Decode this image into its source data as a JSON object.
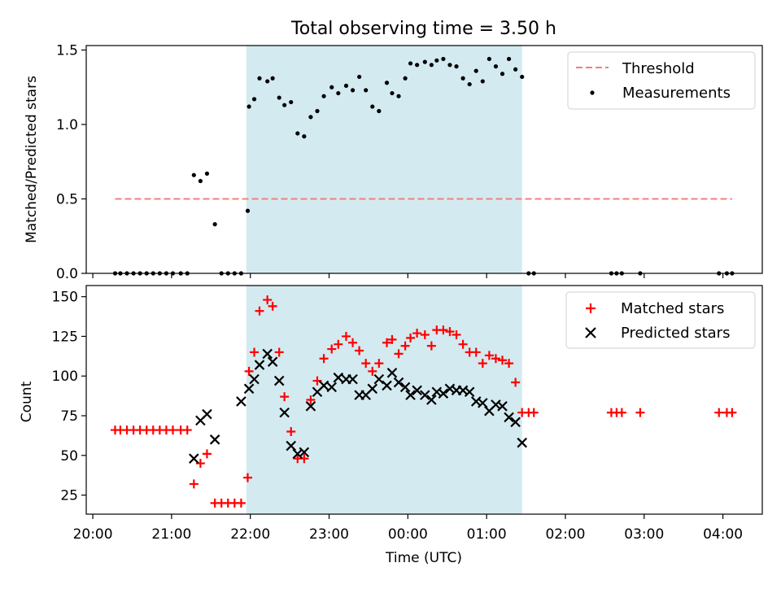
{
  "figure": {
    "suptitle": "Total observing time = 3.50 h"
  },
  "chart_data": [
    {
      "type": "scatter",
      "panel": "top",
      "ylabel": "Matched/Predicted stars",
      "ylim": [
        0,
        1.53
      ],
      "yticks": [
        0.0,
        0.5,
        1.0,
        1.5
      ],
      "ytick_labels": [
        "0.0",
        "0.5",
        "1.0",
        "1.5"
      ],
      "xlim": [
        "19:55",
        "04:30"
      ],
      "shaded_interval": {
        "start": "21:57",
        "end": "01:27",
        "color": "#d3eaf0"
      },
      "series": [
        {
          "name": "Threshold",
          "kind": "dashed-line",
          "color": "#f08080",
          "x": [
            "20:17",
            "04:07"
          ],
          "y": [
            0.5,
            0.5
          ]
        },
        {
          "name": "Measurements",
          "kind": "dot",
          "color": "#000000",
          "points": [
            [
              "20:17",
              0
            ],
            [
              "20:21",
              0
            ],
            [
              "20:26",
              0
            ],
            [
              "20:31",
              0
            ],
            [
              "20:36",
              0
            ],
            [
              "20:41",
              0
            ],
            [
              "20:46",
              0
            ],
            [
              "20:51",
              0
            ],
            [
              "20:56",
              0
            ],
            [
              "21:01",
              0
            ],
            [
              "21:07",
              0
            ],
            [
              "21:12",
              0
            ],
            [
              "21:17",
              0.66
            ],
            [
              "21:22",
              0.62
            ],
            [
              "21:27",
              0.67
            ],
            [
              "21:33",
              0.33
            ],
            [
              "21:38",
              0
            ],
            [
              "21:43",
              0
            ],
            [
              "21:48",
              0
            ],
            [
              "21:53",
              0
            ],
            [
              "21:58",
              0.42
            ],
            [
              "21:59",
              1.12
            ],
            [
              "22:03",
              1.17
            ],
            [
              "22:07",
              1.31
            ],
            [
              "22:13",
              1.29
            ],
            [
              "22:17",
              1.31
            ],
            [
              "22:22",
              1.18
            ],
            [
              "22:26",
              1.13
            ],
            [
              "22:31",
              1.15
            ],
            [
              "22:36",
              0.94
            ],
            [
              "22:41",
              0.92
            ],
            [
              "22:46",
              1.05
            ],
            [
              "22:51",
              1.09
            ],
            [
              "22:56",
              1.19
            ],
            [
              "23:02",
              1.25
            ],
            [
              "23:07",
              1.21
            ],
            [
              "23:13",
              1.26
            ],
            [
              "23:18",
              1.23
            ],
            [
              "23:23",
              1.32
            ],
            [
              "23:28",
              1.23
            ],
            [
              "23:33",
              1.12
            ],
            [
              "23:38",
              1.09
            ],
            [
              "23:44",
              1.28
            ],
            [
              "23:48",
              1.21
            ],
            [
              "23:53",
              1.19
            ],
            [
              "23:58",
              1.31
            ],
            [
              "00:02",
              1.41
            ],
            [
              "00:07",
              1.4
            ],
            [
              "00:13",
              1.42
            ],
            [
              "00:18",
              1.4
            ],
            [
              "00:22",
              1.43
            ],
            [
              "00:27",
              1.44
            ],
            [
              "00:32",
              1.4
            ],
            [
              "00:37",
              1.39
            ],
            [
              "00:42",
              1.31
            ],
            [
              "00:47",
              1.27
            ],
            [
              "00:52",
              1.36
            ],
            [
              "00:57",
              1.29
            ],
            [
              "01:02",
              1.44
            ],
            [
              "01:07",
              1.39
            ],
            [
              "01:12",
              1.34
            ],
            [
              "01:17",
              1.44
            ],
            [
              "01:22",
              1.37
            ],
            [
              "01:27",
              1.32
            ],
            [
              "01:32",
              0
            ],
            [
              "01:36",
              0
            ],
            [
              "02:35",
              0
            ],
            [
              "02:39",
              0
            ],
            [
              "02:43",
              0
            ],
            [
              "02:57",
              0
            ],
            [
              "03:57",
              0
            ],
            [
              "04:03",
              0
            ],
            [
              "04:07",
              0
            ]
          ]
        }
      ],
      "legend": {
        "position": "top-right",
        "entries": [
          "Threshold",
          "Measurements"
        ]
      }
    },
    {
      "type": "scatter",
      "panel": "bottom",
      "xlabel": "Time (UTC)",
      "ylabel": "Count",
      "ylim": [
        13,
        157
      ],
      "yticks": [
        25,
        50,
        75,
        100,
        125,
        150
      ],
      "ytick_labels": [
        "25",
        "50",
        "75",
        "100",
        "125",
        "150"
      ],
      "xlim": [
        "19:55",
        "04:30"
      ],
      "xticks": [
        "20:00",
        "21:00",
        "22:00",
        "23:00",
        "00:00",
        "01:00",
        "02:00",
        "03:00",
        "04:00"
      ],
      "shaded_interval": {
        "start": "21:57",
        "end": "01:27",
        "color": "#d3eaf0"
      },
      "series": [
        {
          "name": "Matched stars",
          "marker": "plus",
          "color": "#ff0000",
          "points": [
            [
              "20:17",
              66
            ],
            [
              "20:21",
              66
            ],
            [
              "20:26",
              66
            ],
            [
              "20:31",
              66
            ],
            [
              "20:36",
              66
            ],
            [
              "20:41",
              66
            ],
            [
              "20:46",
              66
            ],
            [
              "20:51",
              66
            ],
            [
              "20:56",
              66
            ],
            [
              "21:01",
              66
            ],
            [
              "21:07",
              66
            ],
            [
              "21:12",
              66
            ],
            [
              "21:17",
              32
            ],
            [
              "21:22",
              45
            ],
            [
              "21:27",
              51
            ],
            [
              "21:33",
              20
            ],
            [
              "21:38",
              20
            ],
            [
              "21:43",
              20
            ],
            [
              "21:48",
              20
            ],
            [
              "21:53",
              20
            ],
            [
              "21:58",
              36
            ],
            [
              "21:59",
              103
            ],
            [
              "22:03",
              115
            ],
            [
              "22:07",
              141
            ],
            [
              "22:13",
              148
            ],
            [
              "22:17",
              144
            ],
            [
              "22:22",
              115
            ],
            [
              "22:26",
              87
            ],
            [
              "22:31",
              65
            ],
            [
              "22:36",
              48
            ],
            [
              "22:41",
              48
            ],
            [
              "22:46",
              85
            ],
            [
              "22:51",
              97
            ],
            [
              "22:56",
              111
            ],
            [
              "23:02",
              117
            ],
            [
              "23:07",
              120
            ],
            [
              "23:13",
              125
            ],
            [
              "23:18",
              121
            ],
            [
              "23:23",
              116
            ],
            [
              "23:28",
              108
            ],
            [
              "23:33",
              103
            ],
            [
              "23:38",
              108
            ],
            [
              "23:44",
              121
            ],
            [
              "23:48",
              123
            ],
            [
              "23:53",
              114
            ],
            [
              "23:58",
              119
            ],
            [
              "00:02",
              124
            ],
            [
              "00:07",
              127
            ],
            [
              "00:13",
              126
            ],
            [
              "00:18",
              119
            ],
            [
              "00:22",
              129
            ],
            [
              "00:27",
              129
            ],
            [
              "00:32",
              128
            ],
            [
              "00:37",
              126
            ],
            [
              "00:42",
              120
            ],
            [
              "00:47",
              115
            ],
            [
              "00:52",
              115
            ],
            [
              "00:57",
              108
            ],
            [
              "01:02",
              113
            ],
            [
              "01:07",
              111
            ],
            [
              "01:12",
              110
            ],
            [
              "01:17",
              108
            ],
            [
              "01:22",
              96
            ],
            [
              "01:27",
              77
            ],
            [
              "01:32",
              77
            ],
            [
              "01:36",
              77
            ],
            [
              "02:35",
              77
            ],
            [
              "02:39",
              77
            ],
            [
              "02:43",
              77
            ],
            [
              "02:57",
              77
            ],
            [
              "03:57",
              77
            ],
            [
              "04:03",
              77
            ],
            [
              "04:07",
              77
            ]
          ]
        },
        {
          "name": "Predicted stars",
          "marker": "x",
          "color": "#000000",
          "points": [
            [
              "21:17",
              48
            ],
            [
              "21:22",
              72
            ],
            [
              "21:27",
              76
            ],
            [
              "21:33",
              60
            ],
            [
              "21:53",
              84
            ],
            [
              "21:59",
              92
            ],
            [
              "22:03",
              98
            ],
            [
              "22:07",
              107
            ],
            [
              "22:13",
              114
            ],
            [
              "22:17",
              109
            ],
            [
              "22:22",
              97
            ],
            [
              "22:26",
              77
            ],
            [
              "22:31",
              56
            ],
            [
              "22:36",
              51
            ],
            [
              "22:41",
              52
            ],
            [
              "22:46",
              81
            ],
            [
              "22:51",
              90
            ],
            [
              "22:56",
              94
            ],
            [
              "23:02",
              93
            ],
            [
              "23:07",
              99
            ],
            [
              "23:13",
              98
            ],
            [
              "23:18",
              98
            ],
            [
              "23:23",
              88
            ],
            [
              "23:28",
              88
            ],
            [
              "23:33",
              92
            ],
            [
              "23:38",
              98
            ],
            [
              "23:44",
              94
            ],
            [
              "23:48",
              102
            ],
            [
              "23:53",
              96
            ],
            [
              "23:58",
              93
            ],
            [
              "00:02",
              88
            ],
            [
              "00:07",
              91
            ],
            [
              "00:13",
              88
            ],
            [
              "00:18",
              85
            ],
            [
              "00:22",
              90
            ],
            [
              "00:27",
              89
            ],
            [
              "00:32",
              92
            ],
            [
              "00:37",
              91
            ],
            [
              "00:42",
              91
            ],
            [
              "00:47",
              90
            ],
            [
              "00:52",
              84
            ],
            [
              "00:57",
              83
            ],
            [
              "01:02",
              78
            ],
            [
              "01:07",
              82
            ],
            [
              "01:12",
              81
            ],
            [
              "01:17",
              74
            ],
            [
              "01:22",
              71
            ],
            [
              "01:27",
              58
            ]
          ]
        }
      ],
      "legend": {
        "position": "top-right",
        "entries": [
          "Matched stars",
          "Predicted stars"
        ]
      }
    }
  ]
}
